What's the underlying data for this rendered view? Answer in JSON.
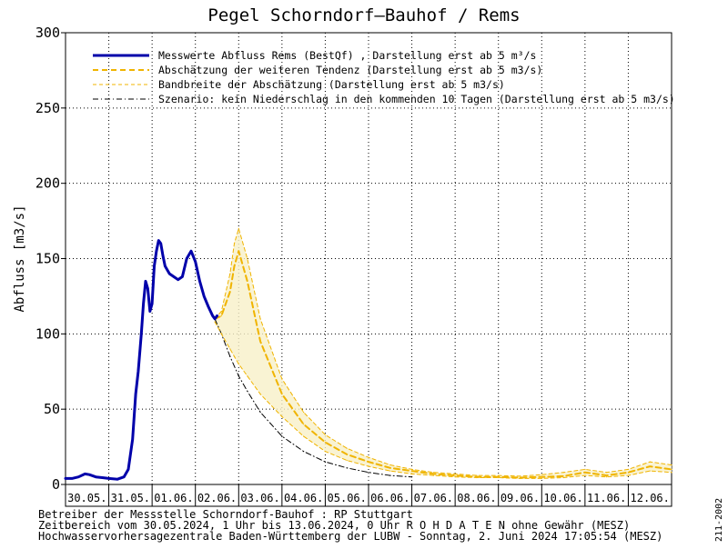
{
  "chart_data": {
    "type": "line",
    "title": "Pegel Schorndorf–Bauhof / Rems",
    "ylabel": "Abfluss [m3/s]",
    "xlabel": "",
    "ylim": [
      0,
      300
    ],
    "yticks": [
      0,
      50,
      100,
      150,
      200,
      250,
      300
    ],
    "xlim": [
      0,
      14
    ],
    "x_units": "days since 30.05.2024 00:00",
    "day_labels": [
      "30.05.",
      "31.05.",
      "01.06.",
      "02.06.",
      "03.06.",
      "04.06.",
      "05.06.",
      "06.06.",
      "07.06.",
      "08.06.",
      "09.06.",
      "10.06.",
      "11.06.",
      "12.06."
    ],
    "grid": true,
    "legend_position": "top-left",
    "legend": [
      {
        "text": "Messwerte Abfluss Rems (BestQf) , Darstellung erst ab 5 m³/s",
        "style": "solid-blue"
      },
      {
        "text": "Abschätzung der weiteren Tendenz (Darstellung erst ab 5 m3/s)",
        "style": "dashed-orange"
      },
      {
        "text": "Bandbreite der Abschätzung (Darstellung erst ab 5 m3/s)",
        "style": "thin-dashed-orange"
      },
      {
        "text": "Szenario: kein Niederschlag in den kommenden 10 Tagen (Darstellung erst ab 5 m3/s)",
        "style": "dashdot-black"
      }
    ],
    "series": [
      {
        "name": "Messwerte Abfluss Rems (BestQf)",
        "color": "#0000aa",
        "style": "solid",
        "x": [
          0,
          0.15,
          0.3,
          0.45,
          0.55,
          0.7,
          0.85,
          1.0,
          1.2,
          1.35,
          1.45,
          1.55,
          1.62,
          1.68,
          1.75,
          1.8,
          1.85,
          1.9,
          1.95,
          2.0,
          2.05,
          2.1,
          2.15,
          2.2,
          2.25,
          2.3,
          2.4,
          2.5,
          2.6,
          2.7,
          2.8,
          2.9,
          3.0,
          3.1,
          3.2,
          3.3,
          3.4,
          3.45,
          3.5
        ],
        "y": [
          4,
          4,
          5,
          7,
          6.5,
          5,
          4.5,
          4,
          3.5,
          5,
          10,
          30,
          60,
          75,
          100,
          120,
          135,
          130,
          115,
          120,
          145,
          155,
          162,
          160,
          152,
          145,
          140,
          138,
          136,
          138,
          150,
          155,
          148,
          135,
          125,
          118,
          112,
          110,
          112
        ]
      },
      {
        "name": "Abschätzung der weiteren Tendenz",
        "color": "#f0b400",
        "style": "dashed",
        "x": [
          3.45,
          3.6,
          3.8,
          3.9,
          4.0,
          4.2,
          4.5,
          5.0,
          5.5,
          6.0,
          6.5,
          7.0,
          7.5,
          8.0,
          8.5,
          9.0,
          9.5,
          10.0,
          10.5,
          11.0,
          11.5,
          12.0,
          12.5,
          13.0,
          13.5,
          14.0
        ],
        "y": [
          110,
          112,
          128,
          145,
          155,
          135,
          95,
          60,
          40,
          28,
          20,
          15,
          11,
          9,
          7,
          6,
          5,
          5,
          4.5,
          5,
          5.5,
          8,
          6,
          8,
          12,
          10
        ]
      },
      {
        "name": "Bandbreite der Abschätzung (oben)",
        "color": "#f0b400",
        "style": "thin-dashed",
        "x": [
          3.45,
          3.6,
          3.8,
          3.9,
          4.0,
          4.2,
          4.5,
          5.0,
          5.5,
          6.0,
          6.5,
          7.0,
          7.5,
          8.0,
          8.5,
          9.0,
          9.5,
          10.0,
          10.5,
          11.0,
          11.5,
          12.0,
          12.5,
          13.0,
          13.5,
          14.0
        ],
        "y": [
          110,
          115,
          140,
          160,
          170,
          150,
          110,
          70,
          48,
          33,
          24,
          18,
          13,
          10,
          8,
          7,
          6,
          6,
          5.5,
          6.5,
          8,
          10,
          8,
          10,
          15,
          13
        ]
      },
      {
        "name": "Bandbreite der Abschätzung (unten)",
        "color": "#f0b400",
        "style": "thin-dashed",
        "x": [
          3.45,
          3.6,
          3.8,
          3.9,
          4.0,
          4.2,
          4.5,
          5.0,
          5.5,
          6.0,
          6.5,
          7.0,
          7.5,
          8.0,
          8.5,
          9.0,
          9.5,
          10.0,
          10.5,
          11.0,
          11.5,
          12.0,
          12.5,
          13.0,
          13.5,
          14.0
        ],
        "y": [
          108,
          100,
          90,
          85,
          80,
          72,
          60,
          45,
          32,
          22,
          16,
          12,
          9,
          7,
          6,
          5,
          4.5,
          4.5,
          4,
          4,
          4.5,
          6,
          5,
          6,
          9,
          8
        ]
      },
      {
        "name": "Szenario: kein Niederschlag in den kommenden 10 Tagen",
        "color": "#000000",
        "style": "dashdot",
        "x": [
          3.45,
          3.6,
          3.8,
          4.0,
          4.2,
          4.5,
          5.0,
          5.5,
          6.0,
          6.5,
          7.0,
          7.5,
          8.0
        ],
        "y": [
          110,
          100,
          85,
          72,
          62,
          48,
          32,
          22,
          15,
          11,
          8,
          6,
          5
        ]
      }
    ]
  },
  "footer": {
    "line1": "Betreiber der Messstelle Schorndorf-Bauhof : RP Stuttgart",
    "line2": "Zeitbereich vom 30.05.2024, 1 Uhr bis 13.06.2024, 0 Uhr   R O H D A T E N ohne Gewähr (MESZ)",
    "line3": "Hochwasservorhersagezentrale Baden-Württemberg der LUBW - Sonntag, 2. Juni 2024 17:05:54 (MESZ)",
    "side_code": "211-2002"
  }
}
